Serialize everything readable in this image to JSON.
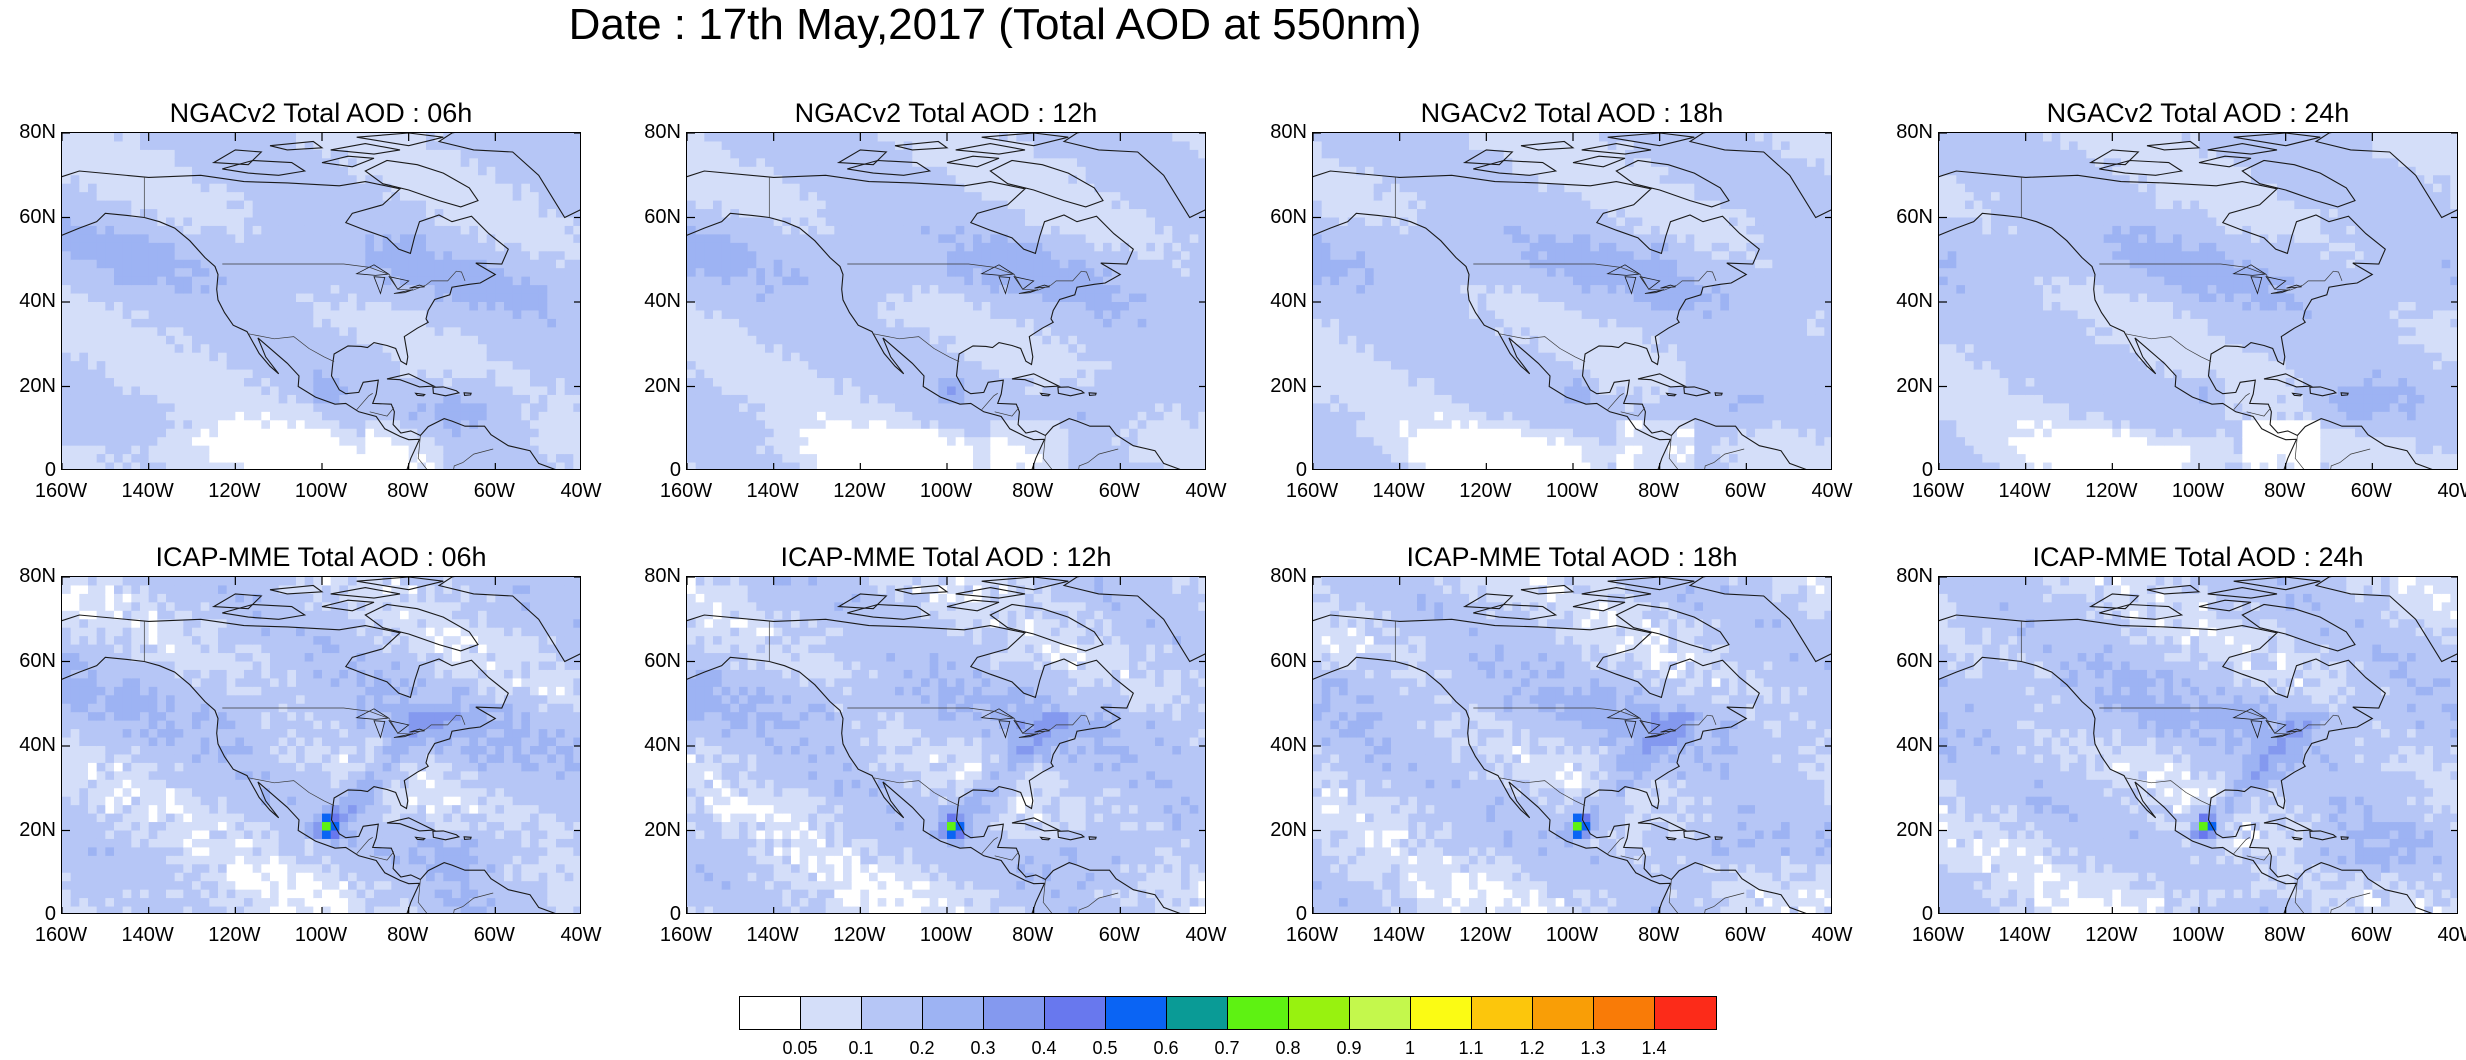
{
  "title": "Date : 17th May,2017 (Total AOD at 550nm)",
  "axes": {
    "lat_labels": [
      "80N",
      "60N",
      "40N",
      "20N",
      "0"
    ],
    "lon_labels": [
      "160W",
      "140W",
      "120W",
      "100W",
      "80W",
      "60W",
      "40W"
    ]
  },
  "panels": [
    {
      "title": "NGACv2 Total AOD : 06h",
      "model": "NGACv2",
      "hour": 6
    },
    {
      "title": "NGACv2 Total AOD : 12h",
      "model": "NGACv2",
      "hour": 12
    },
    {
      "title": "NGACv2 Total AOD : 18h",
      "model": "NGACv2",
      "hour": 18
    },
    {
      "title": "NGACv2 Total AOD : 24h",
      "model": "NGACv2",
      "hour": 24
    },
    {
      "title": "ICAP-MME Total AOD : 06h",
      "model": "ICAP-MME",
      "hour": 6
    },
    {
      "title": "ICAP-MME Total AOD : 12h",
      "model": "ICAP-MME",
      "hour": 12
    },
    {
      "title": "ICAP-MME Total AOD : 18h",
      "model": "ICAP-MME",
      "hour": 18
    },
    {
      "title": "ICAP-MME Total AOD : 24h",
      "model": "ICAP-MME",
      "hour": 24
    }
  ],
  "colorbar": {
    "colors": [
      "#ffffff",
      "#d4def9",
      "#b6c6f6",
      "#9db3f3",
      "#8499ef",
      "#6878ee",
      "#0a64f4",
      "#0a9b96",
      "#5ef212",
      "#98f20f",
      "#c4f84c",
      "#fbfb14",
      "#fcc60c",
      "#f99e06",
      "#f97b07",
      "#fc2b19"
    ],
    "labels": [
      "0.05",
      "0.1",
      "0.2",
      "0.3",
      "0.4",
      "0.5",
      "0.6",
      "0.7",
      "0.8",
      "0.9",
      "1",
      "1.1",
      "1.2",
      "1.3",
      "1.4"
    ]
  }
}
